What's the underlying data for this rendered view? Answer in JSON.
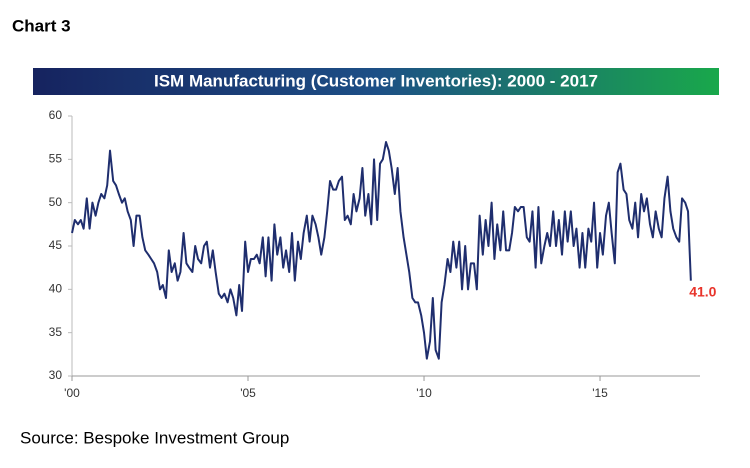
{
  "heading": "Chart 3",
  "source": "Source: Bespoke Investment Group",
  "chart_data": {
    "type": "line",
    "title": "ISM Manufacturing (Customer Inventories): 2000 - 2017",
    "x": [
      2000,
      2000.08,
      2000.17,
      2000.25,
      2000.33,
      2000.42,
      2000.5,
      2000.58,
      2000.67,
      2000.75,
      2000.83,
      2000.92,
      2001,
      2001.08,
      2001.17,
      2001.25,
      2001.33,
      2001.42,
      2001.5,
      2001.58,
      2001.67,
      2001.75,
      2001.83,
      2001.92,
      2002,
      2002.08,
      2002.17,
      2002.25,
      2002.33,
      2002.42,
      2002.5,
      2002.58,
      2002.67,
      2002.75,
      2002.83,
      2002.92,
      2003,
      2003.08,
      2003.17,
      2003.25,
      2003.33,
      2003.42,
      2003.5,
      2003.58,
      2003.67,
      2003.75,
      2003.83,
      2003.92,
      2004,
      2004.08,
      2004.17,
      2004.25,
      2004.33,
      2004.42,
      2004.5,
      2004.58,
      2004.67,
      2004.75,
      2004.83,
      2004.92,
      2005,
      2005.08,
      2005.17,
      2005.25,
      2005.33,
      2005.42,
      2005.5,
      2005.58,
      2005.67,
      2005.75,
      2005.83,
      2005.92,
      2006,
      2006.08,
      2006.17,
      2006.25,
      2006.33,
      2006.42,
      2006.5,
      2006.58,
      2006.67,
      2006.75,
      2006.83,
      2006.92,
      2007,
      2007.08,
      2007.17,
      2007.25,
      2007.33,
      2007.42,
      2007.5,
      2007.58,
      2007.67,
      2007.75,
      2007.83,
      2007.92,
      2008,
      2008.08,
      2008.17,
      2008.25,
      2008.33,
      2008.42,
      2008.5,
      2008.58,
      2008.67,
      2008.75,
      2008.83,
      2008.92,
      2009,
      2009.08,
      2009.17,
      2009.25,
      2009.33,
      2009.42,
      2009.5,
      2009.58,
      2009.67,
      2009.75,
      2009.83,
      2009.92,
      2010,
      2010.08,
      2010.17,
      2010.25,
      2010.33,
      2010.42,
      2010.5,
      2010.58,
      2010.67,
      2010.75,
      2010.83,
      2010.92,
      2011,
      2011.08,
      2011.17,
      2011.25,
      2011.33,
      2011.42,
      2011.5,
      2011.58,
      2011.67,
      2011.75,
      2011.83,
      2011.92,
      2012,
      2012.08,
      2012.17,
      2012.25,
      2012.33,
      2012.42,
      2012.5,
      2012.58,
      2012.67,
      2012.75,
      2012.83,
      2012.92,
      2013,
      2013.08,
      2013.17,
      2013.25,
      2013.33,
      2013.42,
      2013.5,
      2013.58,
      2013.67,
      2013.75,
      2013.83,
      2013.92,
      2014,
      2014.08,
      2014.17,
      2014.25,
      2014.33,
      2014.42,
      2014.5,
      2014.58,
      2014.67,
      2014.75,
      2014.83,
      2014.92,
      2015,
      2015.08,
      2015.17,
      2015.25,
      2015.33,
      2015.42,
      2015.5,
      2015.58,
      2015.67,
      2015.75,
      2015.83,
      2015.92,
      2016,
      2016.08,
      2016.17,
      2016.25,
      2016.33,
      2016.42,
      2016.5,
      2016.58,
      2016.67,
      2016.75,
      2016.83,
      2016.92,
      2017,
      2017.08,
      2017.17,
      2017.25,
      2017.33,
      2017.42,
      2017.5,
      2017.58
    ],
    "series": [
      {
        "name": "Customer Inventories",
        "color": "#1f2e6e",
        "values": [
          46.5,
          48,
          47.5,
          48,
          47,
          50.5,
          47,
          50,
          48.5,
          50,
          51,
          50.5,
          52,
          56,
          52.5,
          52,
          51,
          50,
          50.5,
          49,
          48,
          45,
          48.5,
          48.5,
          46,
          44.5,
          44,
          43.5,
          43,
          42,
          40,
          40.5,
          39,
          44.5,
          42,
          43,
          41,
          42,
          46.5,
          43,
          42.5,
          42,
          45,
          43.5,
          43,
          45,
          45.5,
          42.5,
          44.5,
          42,
          39.5,
          39,
          39.5,
          38.5,
          40,
          39,
          37,
          40.5,
          37.5,
          45.5,
          42,
          43.5,
          43.5,
          44,
          43,
          46,
          41.5,
          46,
          41,
          47.5,
          44,
          46,
          42.5,
          44.5,
          42,
          46.5,
          41,
          45.5,
          43.5,
          46.5,
          48.5,
          45.5,
          48.5,
          47.5,
          46,
          44,
          46,
          49,
          52.5,
          51.5,
          51.5,
          52.5,
          53,
          48,
          48.5,
          47.5,
          51,
          49,
          50.5,
          54,
          48.5,
          51,
          47.5,
          55,
          48,
          54.5,
          55,
          57,
          56,
          54,
          51,
          54,
          49,
          46,
          44,
          42,
          39,
          38.5,
          38.5,
          37,
          35,
          32,
          34,
          39,
          33,
          32,
          38.5,
          40.5,
          43.5,
          42,
          45.5,
          42.5,
          45.5,
          40,
          45,
          40,
          43,
          43,
          40,
          48.5,
          44,
          48,
          45,
          50,
          43.5,
          47.5,
          44.5,
          49,
          44.5,
          44.5,
          46.5,
          49.5,
          49,
          49.5,
          49.5,
          46,
          45.5,
          49,
          42.5,
          49.5,
          43,
          45,
          46.5,
          45,
          49,
          45,
          48,
          44,
          49,
          45.5,
          49,
          45,
          47,
          42.5,
          46.5,
          42.5,
          47,
          45.5,
          50,
          42.5,
          46.5,
          44,
          48.5,
          50,
          46.5,
          43,
          53.5,
          54.5,
          51.5,
          51,
          48,
          47,
          50,
          46,
          51,
          49,
          50.5,
          47.5,
          46,
          49,
          47,
          46,
          50.5,
          53,
          49,
          47,
          46,
          45.5,
          50.5,
          50,
          49,
          41
        ]
      }
    ],
    "annotations": [
      {
        "text": "41.0",
        "x": 2017.58,
        "y": 41,
        "color": "#e8332a"
      }
    ],
    "xlim": [
      2000,
      2017.84
    ],
    "xticks": [
      {
        "value": 2000,
        "label": "'00"
      },
      {
        "value": 2005,
        "label": "'05"
      },
      {
        "value": 2010,
        "label": "'10"
      },
      {
        "value": 2015,
        "label": "'15"
      }
    ],
    "ylim": [
      30,
      60
    ],
    "yticks": [
      30,
      35,
      40,
      45,
      50,
      55,
      60
    ],
    "grid": false
  }
}
